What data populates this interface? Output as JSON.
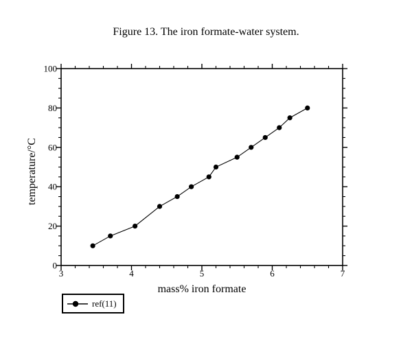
{
  "figure": {
    "background": "#ffffff",
    "foreground": "#000000"
  },
  "chart_data": {
    "type": "line",
    "title": "Figure 13. The iron formate-water system.",
    "xlabel": "mass% iron formate",
    "ylabel": "temperature/°C",
    "xlim": [
      3,
      7
    ],
    "ylim": [
      0,
      100
    ],
    "x_major_ticks": [
      3,
      4,
      5,
      6,
      7
    ],
    "x_minor_step": 0.2,
    "y_major_ticks": [
      0,
      20,
      40,
      60,
      80,
      100
    ],
    "y_minor_step": 5,
    "grid": false,
    "frame": "box-with-outward-ticks",
    "legend": {
      "label": "ref(11)",
      "position": "below-plot-left"
    },
    "series": [
      {
        "name": "ref(11)",
        "marker": "filled-circle",
        "line": "solid",
        "color": "#000000",
        "x": [
          3.45,
          3.7,
          4.05,
          4.4,
          4.65,
          4.85,
          5.1,
          5.2,
          5.5,
          5.7,
          5.9,
          6.1,
          6.25,
          6.5
        ],
        "y": [
          10,
          15,
          20,
          30,
          35,
          40,
          45,
          50,
          55,
          60,
          65,
          70,
          75,
          80
        ]
      }
    ]
  }
}
